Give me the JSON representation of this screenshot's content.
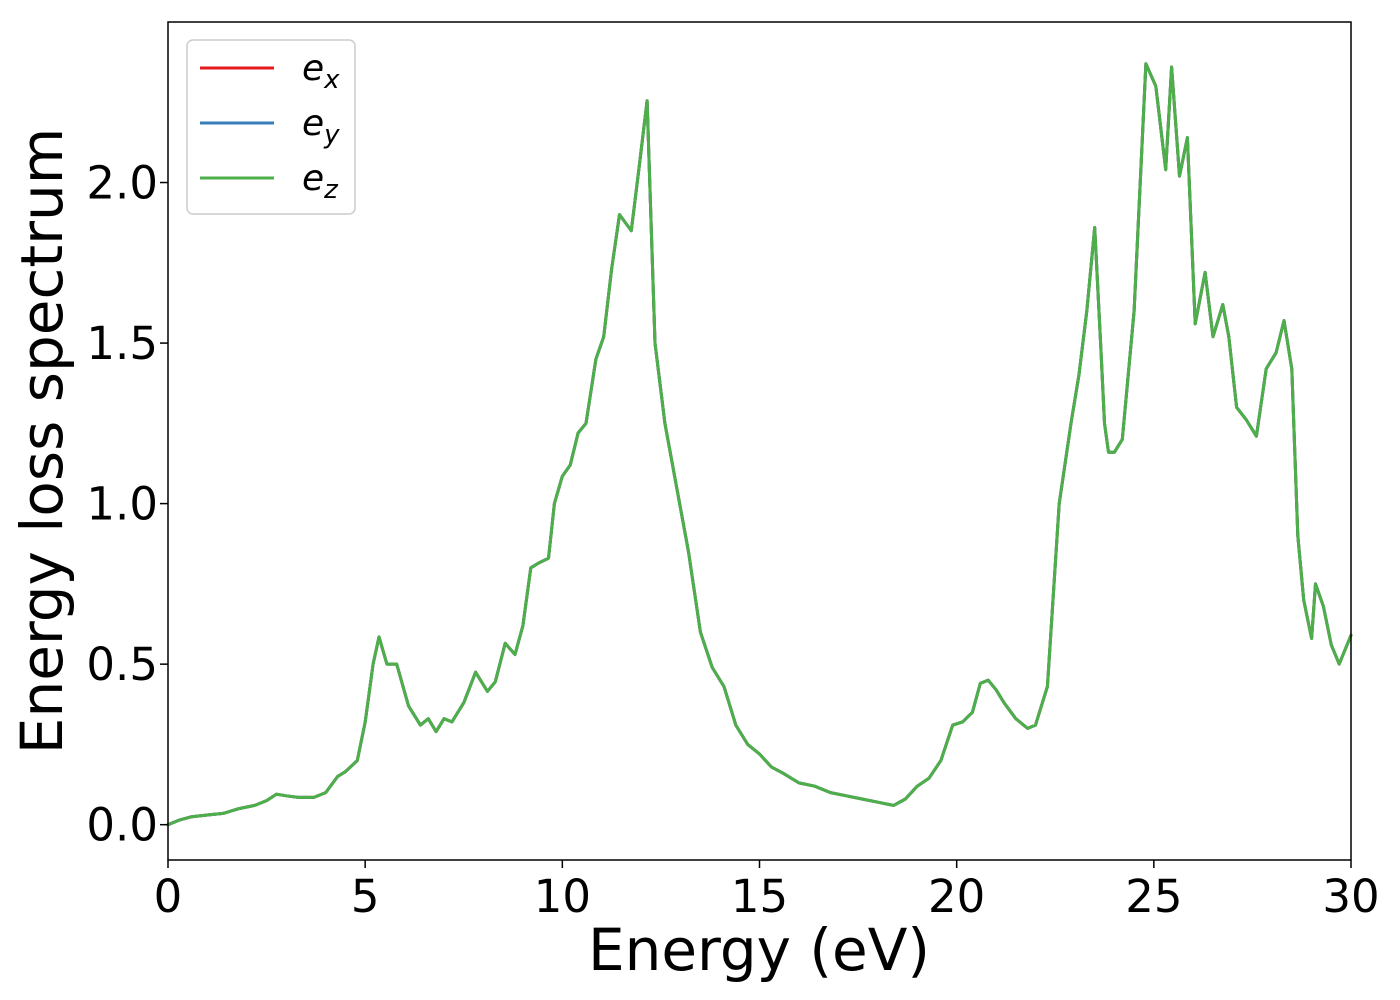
{
  "chart_data": {
    "type": "line",
    "title": "",
    "xlabel": "Energy (eV)",
    "ylabel": "Energy loss spectrum",
    "xlim": [
      0,
      30
    ],
    "ylim": [
      -0.11,
      2.5
    ],
    "x_ticks": [
      "0",
      "5",
      "10",
      "15",
      "20",
      "25",
      "30"
    ],
    "y_ticks": [
      "0.0",
      "0.5",
      "1.0",
      "1.5",
      "2.0"
    ],
    "grid": false,
    "legend_position": "top-left",
    "series": [
      {
        "name": "e",
        "subscript": "x",
        "color": "#e41a1c"
      },
      {
        "name": "e",
        "subscript": "y",
        "color": "#377eb8"
      },
      {
        "name": "e",
        "subscript": "z",
        "color": "#4daf4a"
      }
    ],
    "x": [
      0,
      0.3,
      0.6,
      1,
      1.4,
      1.8,
      2.2,
      2.5,
      2.75,
      3,
      3.3,
      3.7,
      4,
      4.3,
      4.5,
      4.8,
      5,
      5.2,
      5.35,
      5.55,
      5.8,
      6.1,
      6.4,
      6.6,
      6.8,
      7,
      7.2,
      7.5,
      7.8,
      8.1,
      8.3,
      8.55,
      8.8,
      9,
      9.2,
      9.4,
      9.65,
      9.8,
      10,
      10.2,
      10.4,
      10.6,
      10.85,
      11.05,
      11.25,
      11.45,
      11.75,
      11.95,
      12.15,
      12.35,
      12.6,
      12.9,
      13.2,
      13.5,
      13.8,
      14.1,
      14.4,
      14.7,
      15,
      15.3,
      15.6,
      16,
      16.4,
      16.8,
      17.2,
      17.6,
      18,
      18.4,
      18.7,
      19,
      19.3,
      19.6,
      19.9,
      20.15,
      20.4,
      20.6,
      20.8,
      21,
      21.2,
      21.5,
      21.8,
      22,
      22.3,
      22.6,
      22.9,
      23.1,
      23.3,
      23.5,
      23.65,
      23.75,
      23.85,
      24,
      24.2,
      24.5,
      24.8,
      25.05,
      25.3,
      25.45,
      25.65,
      25.85,
      26.05,
      26.3,
      26.5,
      26.75,
      26.9,
      27.1,
      27.35,
      27.6,
      27.85,
      28.1,
      28.3,
      28.5,
      28.65,
      28.8,
      29,
      29.1,
      29.3,
      29.5,
      29.7,
      30
    ],
    "y": [
      0,
      0.015,
      0.025,
      0.03,
      0.035,
      0.05,
      0.06,
      0.075,
      0.095,
      0.09,
      0.085,
      0.085,
      0.1,
      0.15,
      0.165,
      0.2,
      0.32,
      0.5,
      0.585,
      0.5,
      0.5,
      0.37,
      0.31,
      0.33,
      0.29,
      0.33,
      0.32,
      0.38,
      0.475,
      0.415,
      0.445,
      0.565,
      0.53,
      0.62,
      0.8,
      0.815,
      0.83,
      1,
      1.085,
      1.12,
      1.22,
      1.25,
      1.45,
      1.52,
      1.73,
      1.9,
      1.85,
      2.05,
      2.255,
      1.5,
      1.25,
      1.05,
      0.85,
      0.6,
      0.49,
      0.43,
      0.31,
      0.25,
      0.22,
      0.18,
      0.16,
      0.13,
      0.12,
      0.1,
      0.09,
      0.08,
      0.07,
      0.06,
      0.08,
      0.12,
      0.145,
      0.2,
      0.31,
      0.32,
      0.35,
      0.44,
      0.45,
      0.42,
      0.38,
      0.33,
      0.3,
      0.31,
      0.43,
      1,
      1.25,
      1.4,
      1.6,
      1.86,
      1.5,
      1.25,
      1.16,
      1.16,
      1.2,
      1.6,
      2.37,
      2.3,
      2.04,
      2.36,
      2.02,
      2.14,
      1.56,
      1.72,
      1.52,
      1.62,
      1.52,
      1.3,
      1.26,
      1.21,
      1.42,
      1.47,
      1.57,
      1.42,
      0.9,
      0.7,
      0.58,
      0.75,
      0.68,
      0.56,
      0.5,
      0.59
    ]
  }
}
